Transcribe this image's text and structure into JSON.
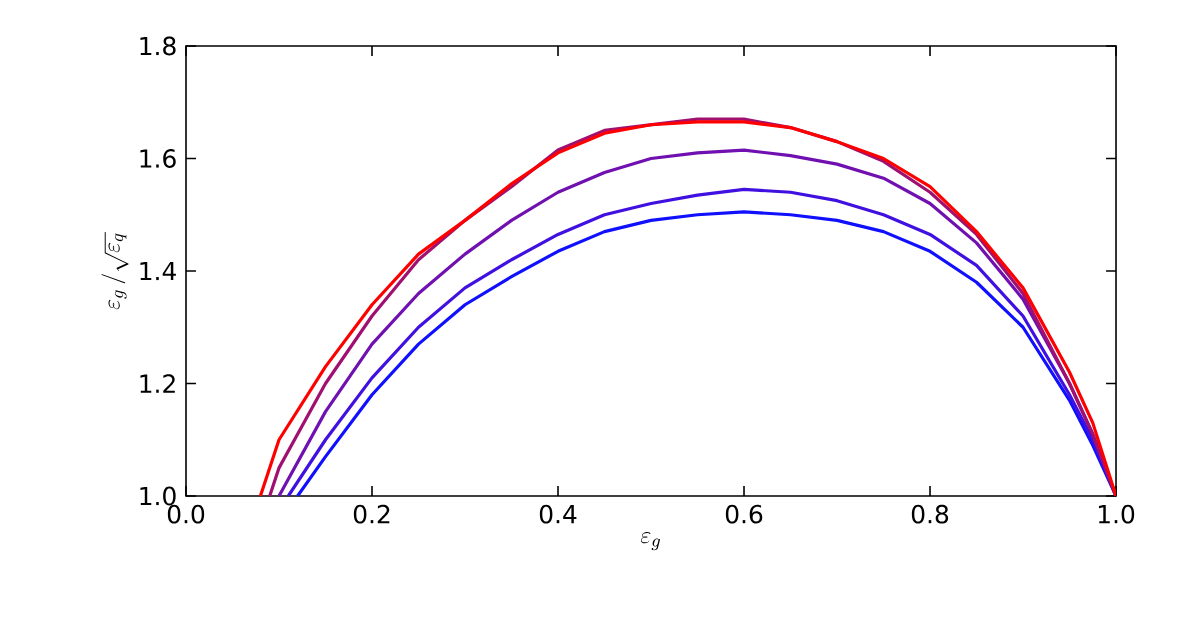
{
  "chart_data": {
    "type": "line",
    "xlabel": "\\varepsilon_g",
    "ylabel": "\\varepsilon_g\\,/\\sqrt{\\varepsilon_q}",
    "xlim": [
      0,
      1
    ],
    "ylim": [
      1.0,
      1.8
    ],
    "xticks": [
      {
        "value": 0,
        "label": "0.0"
      },
      {
        "value": 0.2,
        "label": "0.2"
      },
      {
        "value": 0.4,
        "label": "0.4"
      },
      {
        "value": 0.6,
        "label": "0.6"
      },
      {
        "value": 0.8,
        "label": "0.8"
      },
      {
        "value": 1,
        "label": "1.0"
      }
    ],
    "yticks": [
      {
        "value": 1,
        "label": "1.0"
      },
      {
        "value": 1.2,
        "label": "1.2"
      },
      {
        "value": 1.4,
        "label": "1.4"
      },
      {
        "value": 1.6,
        "label": "1.6"
      },
      {
        "value": 1.8,
        "label": "1.8"
      }
    ],
    "grid": false,
    "marker": "none",
    "line_style": "solid",
    "series": [
      {
        "color": "#1010ff",
        "x": [
          0.12,
          0.15,
          0.2,
          0.25,
          0.3,
          0.35,
          0.4,
          0.45,
          0.5,
          0.55,
          0.6,
          0.65,
          0.7,
          0.75,
          0.8,
          0.85,
          0.9,
          0.95,
          0.975,
          1.0
        ],
        "values": [
          1.0,
          1.07,
          1.18,
          1.27,
          1.34,
          1.39,
          1.435,
          1.47,
          1.49,
          1.5,
          1.505,
          1.5,
          1.49,
          1.47,
          1.435,
          1.38,
          1.3,
          1.17,
          1.09,
          1.0
        ]
      },
      {
        "color": "#4010e0",
        "x": [
          0.11,
          0.15,
          0.2,
          0.25,
          0.3,
          0.35,
          0.4,
          0.45,
          0.5,
          0.55,
          0.6,
          0.65,
          0.7,
          0.75,
          0.8,
          0.85,
          0.9,
          0.95,
          0.975,
          1.0
        ],
        "values": [
          1.0,
          1.1,
          1.21,
          1.3,
          1.37,
          1.42,
          1.465,
          1.5,
          1.52,
          1.535,
          1.545,
          1.54,
          1.525,
          1.5,
          1.465,
          1.41,
          1.32,
          1.18,
          1.1,
          1.0
        ]
      },
      {
        "color": "#7010b0",
        "x": [
          0.1,
          0.15,
          0.2,
          0.25,
          0.3,
          0.35,
          0.4,
          0.45,
          0.5,
          0.55,
          0.6,
          0.65,
          0.7,
          0.75,
          0.8,
          0.85,
          0.9,
          0.95,
          0.975,
          1.0
        ],
        "values": [
          1.0,
          1.15,
          1.27,
          1.36,
          1.43,
          1.49,
          1.54,
          1.575,
          1.6,
          1.61,
          1.615,
          1.605,
          1.59,
          1.565,
          1.52,
          1.45,
          1.35,
          1.2,
          1.11,
          1.0
        ]
      },
      {
        "color": "#a01070",
        "x": [
          0.09,
          0.1,
          0.15,
          0.2,
          0.25,
          0.3,
          0.35,
          0.4,
          0.45,
          0.5,
          0.55,
          0.6,
          0.65,
          0.7,
          0.75,
          0.8,
          0.85,
          0.9,
          0.95,
          0.975,
          1.0
        ],
        "values": [
          1.0,
          1.05,
          1.2,
          1.32,
          1.42,
          1.49,
          1.55,
          1.615,
          1.65,
          1.66,
          1.67,
          1.67,
          1.655,
          1.63,
          1.595,
          1.54,
          1.465,
          1.36,
          1.2,
          1.11,
          1.0
        ]
      },
      {
        "color": "#ff0000",
        "x": [
          0.08,
          0.1,
          0.15,
          0.2,
          0.25,
          0.3,
          0.35,
          0.4,
          0.45,
          0.5,
          0.55,
          0.6,
          0.65,
          0.7,
          0.75,
          0.8,
          0.85,
          0.9,
          0.95,
          0.975,
          1.0
        ],
        "values": [
          1.0,
          1.1,
          1.23,
          1.34,
          1.43,
          1.49,
          1.555,
          1.61,
          1.645,
          1.66,
          1.665,
          1.665,
          1.655,
          1.63,
          1.6,
          1.55,
          1.47,
          1.37,
          1.22,
          1.13,
          1.0
        ]
      }
    ]
  }
}
